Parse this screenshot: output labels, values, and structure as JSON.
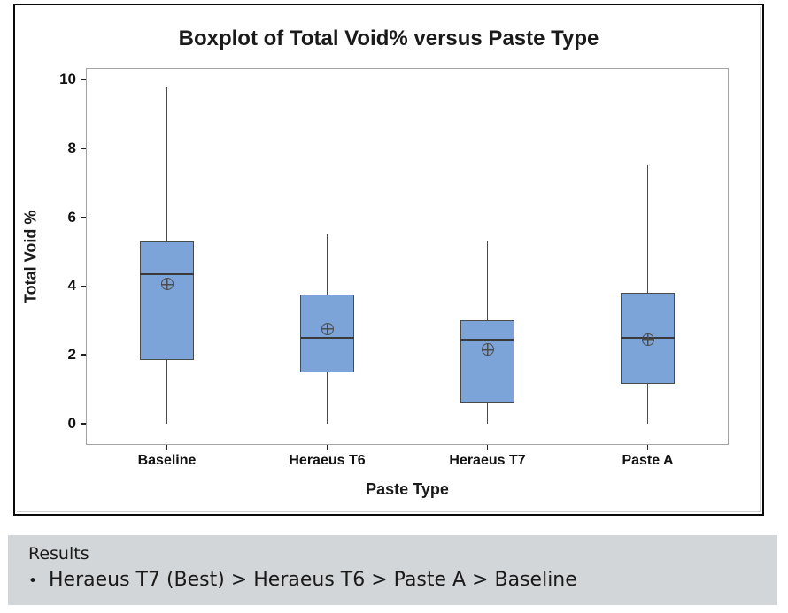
{
  "results": {
    "heading": "Results",
    "bullet_char": "•",
    "bullet_text": "Heraeus T7 (Best) > Heraeus T6 > Paste A > Baseline"
  },
  "chart_data": {
    "type": "boxplot",
    "title": "Boxplot of Total Void% versus Paste Type",
    "xlabel": "Paste Type",
    "ylabel": "Total Void %",
    "ylim": [
      0,
      10
    ],
    "yticks": [
      0,
      2,
      4,
      6,
      8,
      10
    ],
    "grid": false,
    "legend": "none",
    "categories": [
      "Baseline",
      "Heraeus T6",
      "Heraeus T7",
      "Paste A"
    ],
    "series": [
      {
        "name": "Baseline",
        "whisker_low": 0,
        "q1": 1.85,
        "median": 4.35,
        "q3": 5.3,
        "whisker_high": 9.8,
        "mean": 4.05
      },
      {
        "name": "Heraeus T6",
        "whisker_low": 0,
        "q1": 1.5,
        "median": 2.5,
        "q3": 3.75,
        "whisker_high": 5.5,
        "mean": 2.75
      },
      {
        "name": "Heraeus T7",
        "whisker_low": 0,
        "q1": 0.6,
        "median": 2.45,
        "q3": 3.0,
        "whisker_high": 5.3,
        "mean": 2.15
      },
      {
        "name": "Paste A",
        "whisker_low": 0,
        "q1": 1.15,
        "median": 2.5,
        "q3": 3.8,
        "whisker_high": 7.5,
        "mean": 2.45
      }
    ],
    "colors": {
      "box_fill": "#7CA4D8",
      "box_border": "#4A4A4A",
      "whisker": "#4A4A4A",
      "median": "#3A3A3A",
      "mean_marker": "#4D4D4D",
      "tick": "#222222",
      "plot_border": "#A3A3A3",
      "frame_border": "#0A0A0A",
      "panel_bg": "#D3D6D8"
    }
  }
}
